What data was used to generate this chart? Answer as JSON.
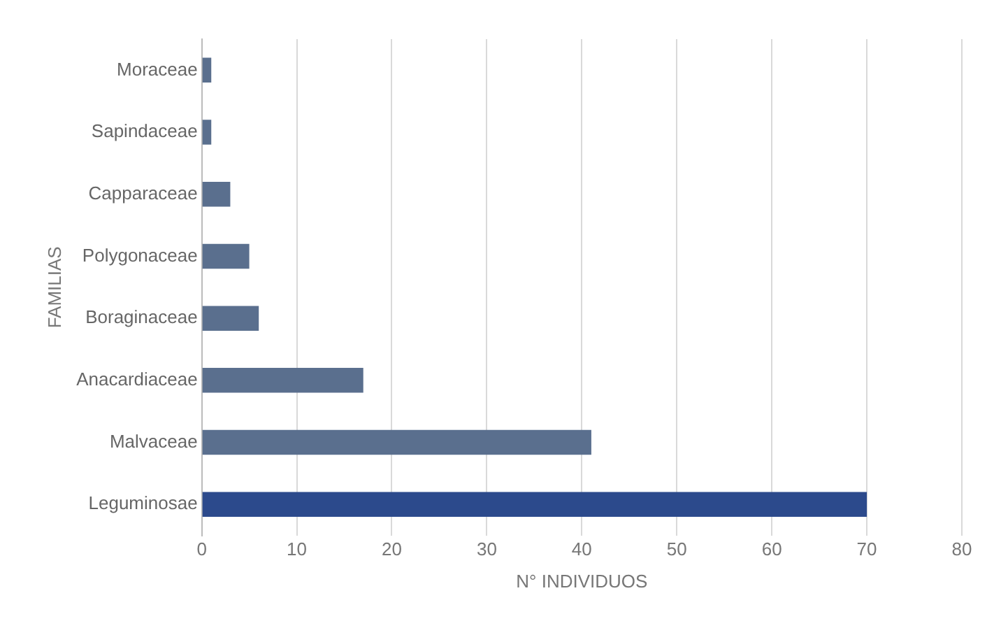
{
  "chart_data": {
    "type": "bar",
    "orientation": "horizontal",
    "xlabel": "N° INDIVIDUOS",
    "ylabel": "FAMILIAS",
    "categories": [
      "Moraceae",
      "Sapindaceae",
      "Capparaceae",
      "Polygonaceae",
      "Boraginaceae",
      "Anacardiaceae",
      "Malvaceae",
      "Leguminosae"
    ],
    "values": [
      1,
      1,
      3,
      5,
      6,
      17,
      41,
      70
    ],
    "colors": [
      "#5a6f8e",
      "#5a6f8e",
      "#5a6f8e",
      "#5a6f8e",
      "#5a6f8e",
      "#5a6f8e",
      "#5a6f8e",
      "#2c4a8c"
    ],
    "xlim": [
      0,
      80
    ],
    "xticks": [
      0,
      10,
      20,
      30,
      40,
      50,
      60,
      70,
      80
    ],
    "grid": "x",
    "legend": false
  }
}
